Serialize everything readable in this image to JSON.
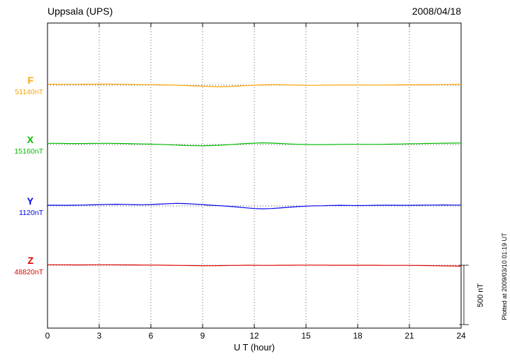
{
  "header": {
    "station": "Uppsala (UPS)",
    "date": "2008/04/18"
  },
  "chart_data": {
    "type": "line",
    "title": "Uppsala (UPS)",
    "date": "2008/04/18",
    "xlabel": "U T (hour)",
    "xlim": [
      0,
      24
    ],
    "xticks": [
      0,
      3,
      6,
      9,
      12,
      15,
      18,
      21,
      24
    ],
    "sample_interval_hours": 0.5,
    "grid": "dotted vertical lines every 3 hours; dotted horizontal baseline per trace",
    "scale_bar": {
      "label": "500 nT",
      "nT": 500
    },
    "plotted_at": "Plotted at 2009/03/10 01:19 UT",
    "series": [
      {
        "name": "F",
        "baseline_label": "51140nT",
        "baseline_nT": 51140,
        "color": "#FFA500",
        "offsets_nT": [
          8,
          8,
          7,
          7,
          8,
          8,
          9,
          9,
          8,
          7,
          6,
          5,
          4,
          3,
          2,
          0,
          -3,
          -6,
          -9,
          -12,
          -14,
          -12,
          -8,
          -4,
          0,
          3,
          5,
          4,
          2,
          0,
          -1,
          -1,
          0,
          1,
          2,
          2,
          2,
          1,
          1,
          1,
          2,
          3,
          3,
          3,
          3,
          4,
          5,
          6,
          7
        ]
      },
      {
        "name": "X",
        "baseline_label": "15160nT",
        "baseline_nT": 15160,
        "color": "#00BB00",
        "offsets_nT": [
          10,
          10,
          9,
          8,
          8,
          9,
          10,
          10,
          9,
          8,
          6,
          5,
          3,
          1,
          -2,
          -5,
          -8,
          -10,
          -11,
          -9,
          -6,
          -2,
          3,
          8,
          12,
          14,
          12,
          9,
          5,
          2,
          0,
          -1,
          -1,
          0,
          1,
          2,
          2,
          1,
          1,
          2,
          3,
          4,
          6,
          7,
          9,
          10,
          11,
          12,
          13
        ]
      },
      {
        "name": "Y",
        "baseline_label": "1120nT",
        "baseline_nT": 1120,
        "color": "#0000EE",
        "offsets_nT": [
          6,
          6,
          5,
          6,
          7,
          9,
          11,
          13,
          14,
          13,
          11,
          10,
          12,
          15,
          19,
          22,
          20,
          16,
          11,
          6,
          2,
          -3,
          -9,
          -16,
          -22,
          -24,
          -22,
          -17,
          -11,
          -6,
          -2,
          1,
          2,
          4,
          5,
          4,
          3,
          4,
          5,
          6,
          6,
          5,
          5,
          6,
          7,
          7,
          8,
          7,
          7
        ]
      },
      {
        "name": "Z",
        "baseline_label": "48820nT",
        "baseline_nT": 48820,
        "color": "#DD0000",
        "offsets_nT": [
          4,
          4,
          4,
          3,
          3,
          4,
          4,
          4,
          4,
          3,
          3,
          2,
          2,
          1,
          0,
          -1,
          -2,
          -3,
          -4,
          -4,
          -3,
          -2,
          -1,
          0,
          0,
          -1,
          -1,
          0,
          0,
          1,
          1,
          1,
          1,
          0,
          0,
          0,
          0,
          0,
          0,
          -1,
          -1,
          -1,
          -1,
          -2,
          -3,
          -4,
          -5,
          -6,
          -8
        ]
      }
    ]
  }
}
